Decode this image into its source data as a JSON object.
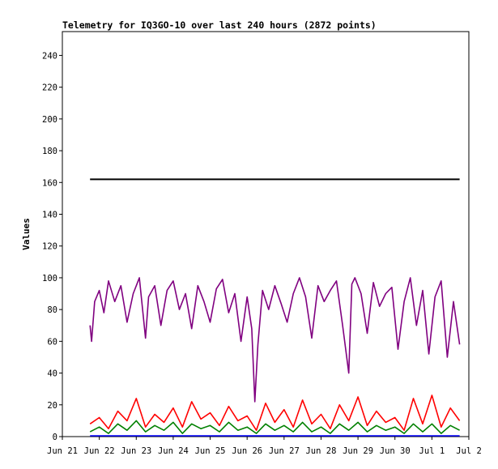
{
  "chart_data": {
    "type": "line",
    "title": "Telemetry for IQ3GO-10 over last 240 hours (2872 points)",
    "xlabel": "",
    "ylabel": "Values",
    "ylim": [
      0,
      255
    ],
    "yticks": [
      0,
      20,
      40,
      60,
      80,
      100,
      120,
      140,
      160,
      180,
      200,
      220,
      240
    ],
    "xlim": [
      "Jun 21",
      "Jul 2"
    ],
    "xticks": [
      "Jun 21",
      "Jun 22",
      "Jun 23",
      "Jun 24",
      "Jun 25",
      "Jun 26",
      "Jun 27",
      "Jun 28",
      "Jun 29",
      "Jun 30",
      "Jul 1",
      "Jul 2"
    ],
    "grid": false,
    "legend": "none",
    "series": [
      {
        "color": "#000000",
        "x": [
          "Jun 21 18:00",
          "Jul 1 18:00"
        ],
        "values": [
          162,
          162
        ]
      },
      {
        "color": "#800080",
        "x": [
          "Jun 21 18:00",
          "Jun 21 19:00",
          "Jun 21 21:00",
          "Jun 22 00:00",
          "Jun 22 03:00",
          "Jun 22 06:00",
          "Jun 22 10:00",
          "Jun 22 14:00",
          "Jun 22 18:00",
          "Jun 22 22:00",
          "Jun 23 02:00",
          "Jun 23 06:00",
          "Jun 23 08:00",
          "Jun 23 12:00",
          "Jun 23 16:00",
          "Jun 23 20:00",
          "Jun 24 00:00",
          "Jun 24 04:00",
          "Jun 24 08:00",
          "Jun 24 12:00",
          "Jun 24 16:00",
          "Jun 24 20:00",
          "Jun 25 00:00",
          "Jun 25 04:00",
          "Jun 25 08:00",
          "Jun 25 12:00",
          "Jun 25 16:00",
          "Jun 25 20:00",
          "Jun 26 00:00",
          "Jun 26 03:00",
          "Jun 26 05:00",
          "Jun 26 07:00",
          "Jun 26 10:00",
          "Jun 26 14:00",
          "Jun 26 18:00",
          "Jun 26 22:00",
          "Jun 27 02:00",
          "Jun 27 06:00",
          "Jun 27 10:00",
          "Jun 27 14:00",
          "Jun 27 18:00",
          "Jun 27 22:00",
          "Jun 28 02:00",
          "Jun 28 06:00",
          "Jun 28 10:00",
          "Jun 28 14:00",
          "Jun 28 18:00",
          "Jun 28 20:00",
          "Jun 28 22:00",
          "Jun 29 02:00",
          "Jun 29 06:00",
          "Jun 29 10:00",
          "Jun 29 14:00",
          "Jun 29 18:00",
          "Jun 29 22:00",
          "Jun 30 02:00",
          "Jun 30 06:00",
          "Jun 30 10:00",
          "Jun 30 14:00",
          "Jun 30 18:00",
          "Jun 30 22:00",
          "Jul 1 02:00",
          "Jul 1 06:00",
          "Jul 1 10:00",
          "Jul 1 14:00",
          "Jul 1 18:00"
        ],
        "values": [
          70,
          60,
          85,
          92,
          78,
          98,
          85,
          95,
          72,
          90,
          100,
          62,
          88,
          95,
          70,
          92,
          98,
          80,
          90,
          68,
          95,
          85,
          72,
          93,
          99,
          78,
          90,
          60,
          88,
          68,
          22,
          58,
          92,
          80,
          95,
          84,
          72,
          90,
          100,
          88,
          62,
          95,
          85,
          92,
          98,
          70,
          40,
          96,
          100,
          90,
          65,
          97,
          82,
          90,
          94,
          55,
          85,
          100,
          70,
          92,
          52,
          88,
          98,
          50,
          85,
          58
        ]
      },
      {
        "color": "#ff0000",
        "x": [
          "Jun 21 18:00",
          "Jun 22 00:00",
          "Jun 22 06:00",
          "Jun 22 12:00",
          "Jun 22 18:00",
          "Jun 23 00:00",
          "Jun 23 06:00",
          "Jun 23 12:00",
          "Jun 23 18:00",
          "Jun 24 00:00",
          "Jun 24 06:00",
          "Jun 24 12:00",
          "Jun 24 18:00",
          "Jun 25 00:00",
          "Jun 25 06:00",
          "Jun 25 12:00",
          "Jun 25 18:00",
          "Jun 26 00:00",
          "Jun 26 06:00",
          "Jun 26 12:00",
          "Jun 26 18:00",
          "Jun 27 00:00",
          "Jun 27 06:00",
          "Jun 27 12:00",
          "Jun 27 18:00",
          "Jun 28 00:00",
          "Jun 28 06:00",
          "Jun 28 12:00",
          "Jun 28 18:00",
          "Jun 29 00:00",
          "Jun 29 06:00",
          "Jun 29 12:00",
          "Jun 29 18:00",
          "Jun 30 00:00",
          "Jun 30 06:00",
          "Jun 30 12:00",
          "Jun 30 18:00",
          "Jul 1 00:00",
          "Jul 1 06:00",
          "Jul 1 12:00",
          "Jul 1 18:00"
        ],
        "values": [
          8,
          12,
          5,
          16,
          10,
          24,
          6,
          14,
          9,
          18,
          6,
          22,
          11,
          15,
          7,
          19,
          10,
          13,
          4,
          21,
          9,
          17,
          6,
          23,
          8,
          14,
          5,
          20,
          10,
          25,
          7,
          16,
          9,
          12,
          4,
          24,
          8,
          26,
          6,
          18,
          10
        ]
      },
      {
        "color": "#008000",
        "x": [
          "Jun 21 18:00",
          "Jun 22 00:00",
          "Jun 22 06:00",
          "Jun 22 12:00",
          "Jun 22 18:00",
          "Jun 23 00:00",
          "Jun 23 06:00",
          "Jun 23 12:00",
          "Jun 23 18:00",
          "Jun 24 00:00",
          "Jun 24 06:00",
          "Jun 24 12:00",
          "Jun 24 18:00",
          "Jun 25 00:00",
          "Jun 25 06:00",
          "Jun 25 12:00",
          "Jun 25 18:00",
          "Jun 26 00:00",
          "Jun 26 06:00",
          "Jun 26 12:00",
          "Jun 26 18:00",
          "Jun 27 00:00",
          "Jun 27 06:00",
          "Jun 27 12:00",
          "Jun 27 18:00",
          "Jun 28 00:00",
          "Jun 28 06:00",
          "Jun 28 12:00",
          "Jun 28 18:00",
          "Jun 29 00:00",
          "Jun 29 06:00",
          "Jun 29 12:00",
          "Jun 29 18:00",
          "Jun 30 00:00",
          "Jun 30 06:00",
          "Jun 30 12:00",
          "Jun 30 18:00",
          "Jul 1 00:00",
          "Jul 1 06:00",
          "Jul 1 12:00",
          "Jul 1 18:00"
        ],
        "values": [
          3,
          6,
          2,
          8,
          4,
          10,
          3,
          7,
          4,
          9,
          2,
          8,
          5,
          7,
          3,
          9,
          4,
          6,
          2,
          8,
          4,
          7,
          3,
          9,
          3,
          6,
          2,
          8,
          4,
          9,
          3,
          7,
          4,
          6,
          2,
          8,
          3,
          8,
          2,
          7,
          4
        ]
      },
      {
        "color": "#0000ff",
        "x": [
          "Jun 21 18:00",
          "Jul 1 18:00"
        ],
        "values": [
          0.5,
          0.5
        ]
      }
    ]
  }
}
